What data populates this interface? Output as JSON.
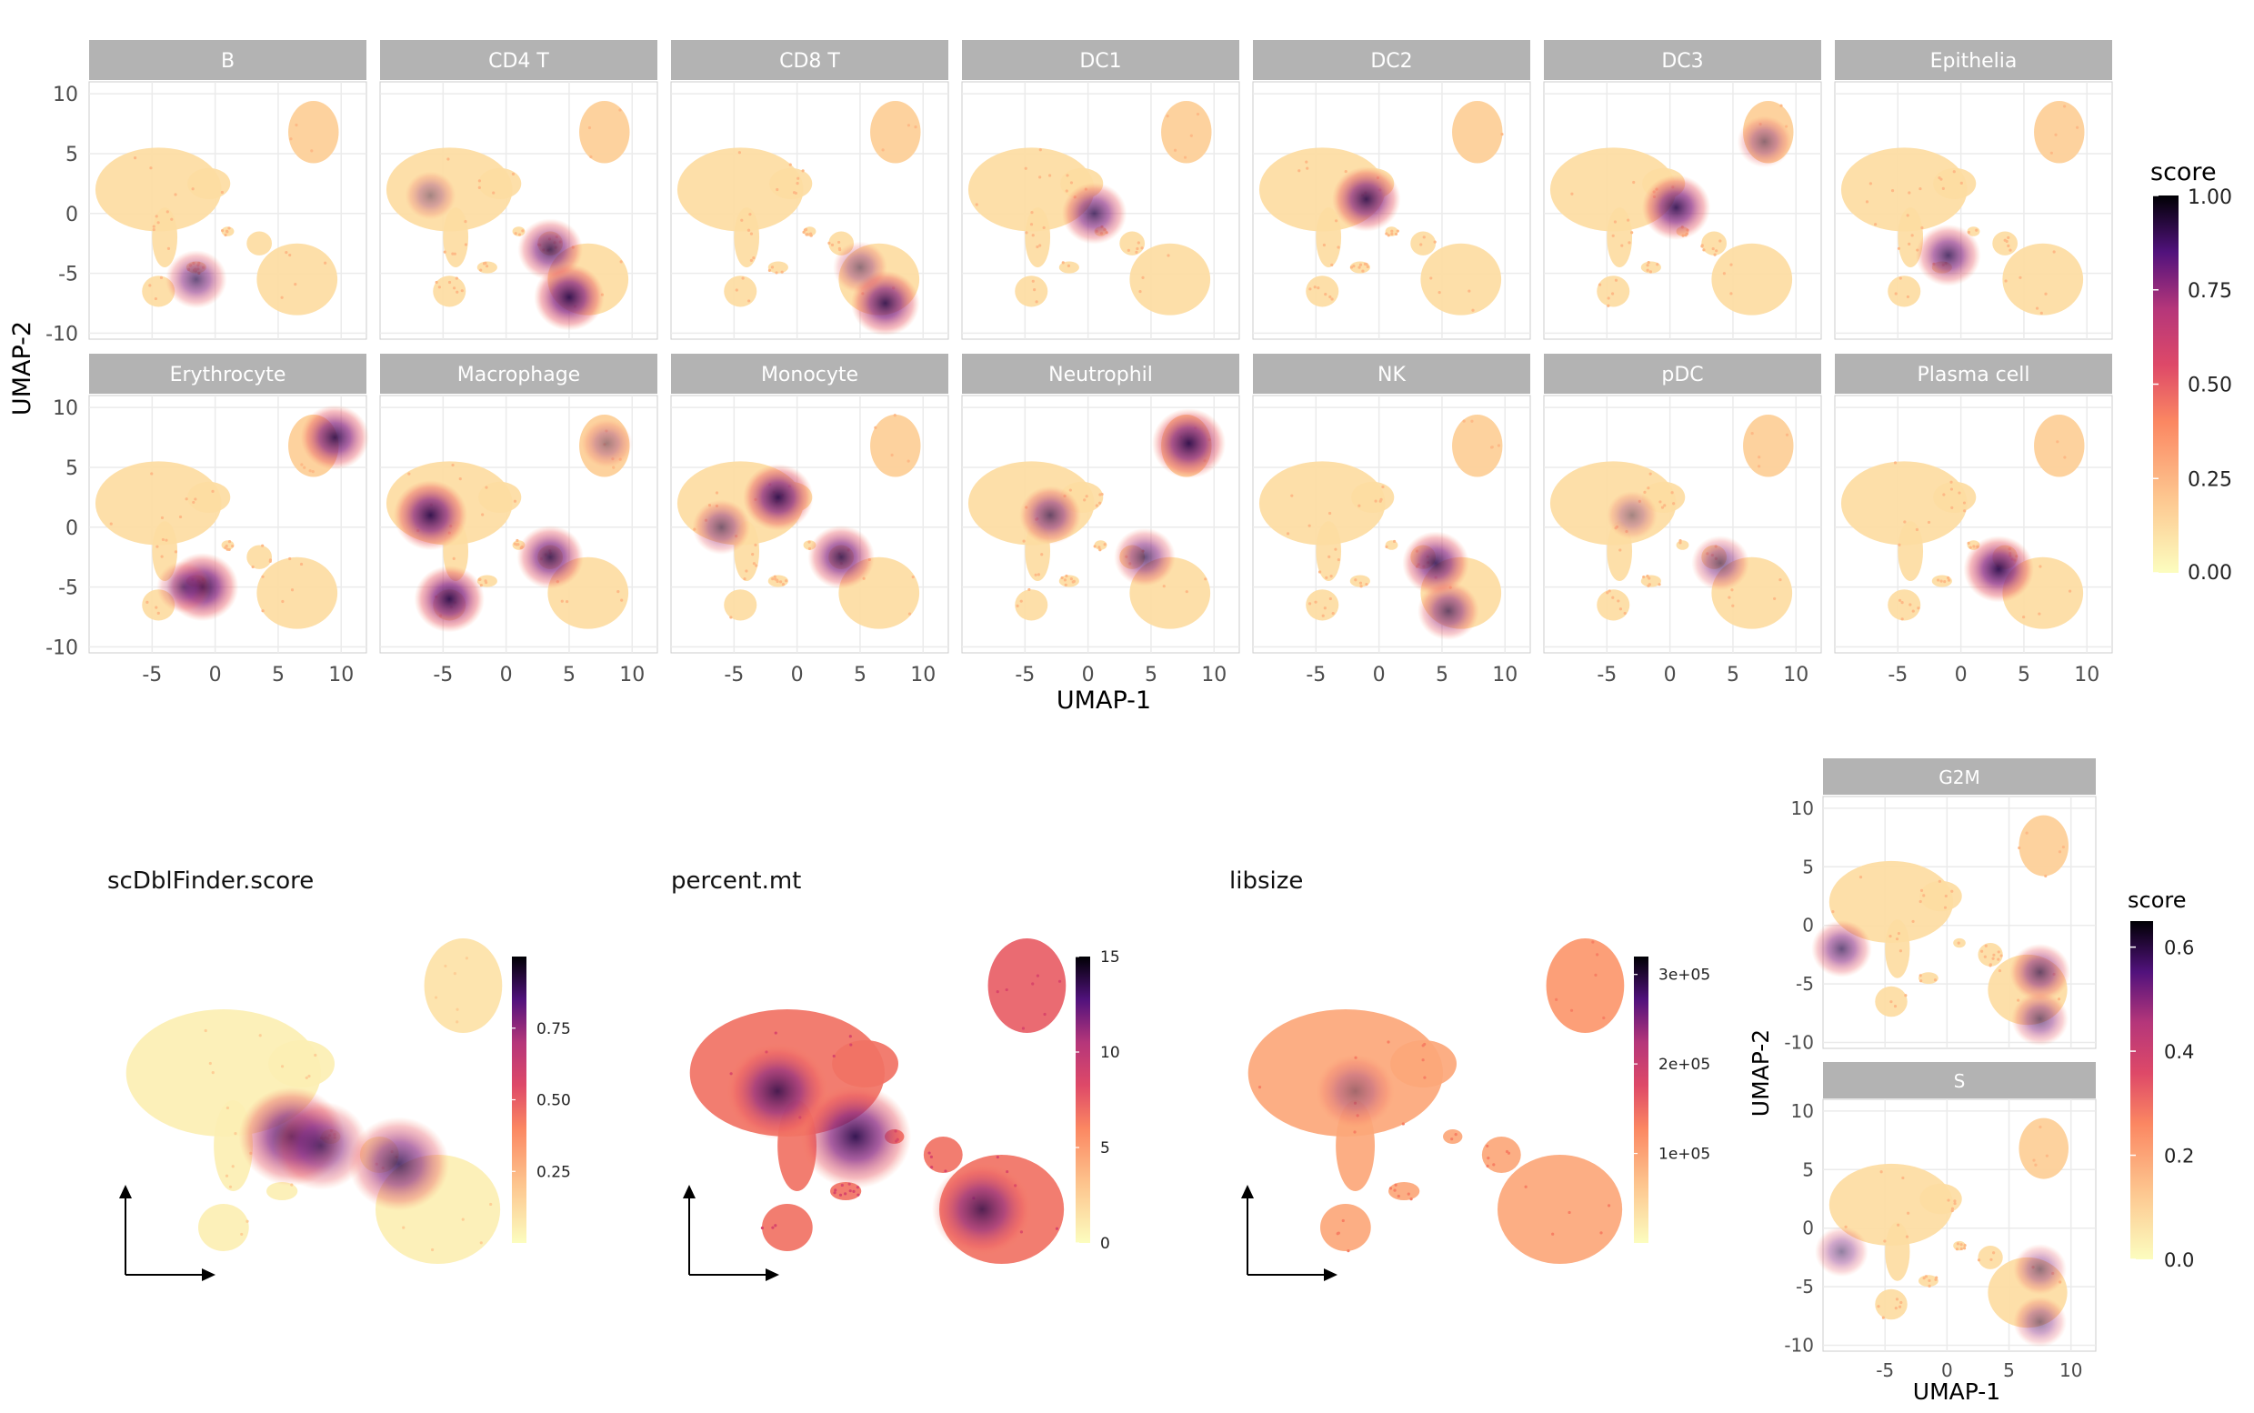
{
  "figure": {
    "top_grid": {
      "facets": [
        "B",
        "CD4 T",
        "CD8 T",
        "DC1",
        "DC2",
        "DC3",
        "Epithelia",
        "Erythrocyte",
        "Macrophage",
        "Monocyte",
        "Neutrophil",
        "NK",
        "pDC",
        "Plasma cell"
      ],
      "xlabel": "UMAP-1",
      "ylabel": "UMAP-2",
      "x_ticks": [
        -5,
        0,
        5,
        10
      ],
      "y_ticks": [
        10,
        5,
        0,
        -5,
        -10
      ],
      "xlim": [
        -10,
        12
      ],
      "ylim": [
        -10.5,
        11
      ],
      "legend": {
        "title": "score",
        "ticks": [
          1.0,
          0.75,
          0.5,
          0.25,
          0.0
        ],
        "tick_labels": [
          "1.00",
          "0.75",
          "0.50",
          "0.25",
          "0.00"
        ],
        "range": [
          0,
          1
        ]
      }
    },
    "bottom_panels": [
      {
        "title": "scDblFinder.score",
        "legend_ticks": [
          "0.75",
          "0.50",
          "0.25"
        ],
        "legend_values": [
          0.75,
          0.5,
          0.25
        ],
        "legend_range": [
          0,
          1
        ]
      },
      {
        "title": "percent.mt",
        "legend_ticks": [
          "15",
          "10",
          "5",
          "0"
        ],
        "legend_values": [
          15,
          10,
          5,
          0
        ],
        "legend_range": [
          0,
          15
        ]
      },
      {
        "title": "libsize",
        "legend_ticks": [
          "3e+05",
          "2e+05",
          "1e+05"
        ],
        "legend_values": [
          300000,
          200000,
          100000
        ],
        "legend_range": [
          0,
          320000
        ]
      }
    ],
    "cell_cycle": {
      "facets": [
        "G2M",
        "S"
      ],
      "xlabel": "UMAP-1",
      "ylabel": "UMAP-2",
      "x_ticks": [
        -5,
        0,
        5,
        10
      ],
      "y_ticks": [
        10,
        5,
        0,
        -5,
        -10
      ],
      "legend": {
        "title": "score",
        "ticks": [
          0.6,
          0.4,
          0.2,
          0.0
        ],
        "tick_labels": [
          "0.6",
          "0.4",
          "0.2",
          "0.0"
        ],
        "range": [
          0,
          0.65
        ]
      }
    },
    "colors": {
      "low": "#fcfdbf",
      "mid": "#fc8961",
      "high": "#000004",
      "strip": "#b3b3b3",
      "grid": "#ebebeb"
    }
  },
  "chart_data": [
    {
      "type": "scatter",
      "kind": "umap-facet-grid",
      "xlabel": "UMAP-1",
      "ylabel": "UMAP-2",
      "xlim": [
        -10,
        12
      ],
      "ylim": [
        -10.5,
        11
      ],
      "legend_title": "score",
      "series": [
        {
          "name": "B",
          "hot_regions": [
            [
              -1.5,
              -5.5,
              0.6
            ]
          ]
        },
        {
          "name": "CD4 T",
          "hot_regions": [
            [
              5.0,
              -7.0,
              0.85
            ],
            [
              3.5,
              -3.0,
              0.7
            ],
            [
              -6.0,
              1.5,
              0.3
            ]
          ]
        },
        {
          "name": "CD8 T",
          "hot_regions": [
            [
              7.0,
              -7.5,
              0.8
            ],
            [
              5.0,
              -4.5,
              0.4
            ]
          ]
        },
        {
          "name": "DC1",
          "hot_regions": [
            [
              0.5,
              0.0,
              0.7
            ]
          ]
        },
        {
          "name": "DC2",
          "hot_regions": [
            [
              -1.0,
              1.2,
              0.8
            ]
          ]
        },
        {
          "name": "DC3",
          "hot_regions": [
            [
              7.5,
              6.0,
              0.4
            ],
            [
              0.5,
              0.5,
              0.8
            ]
          ]
        },
        {
          "name": "Epithelia",
          "hot_regions": [
            [
              -1.0,
              -3.5,
              0.7
            ]
          ]
        },
        {
          "name": "Erythrocyte",
          "hot_regions": [
            [
              -1.0,
              -5.0,
              0.9
            ],
            [
              9.5,
              7.5,
              0.8
            ],
            [
              -2.5,
              -5.0,
              0.4
            ]
          ]
        },
        {
          "name": "Macrophage",
          "hot_regions": [
            [
              -6.0,
              1.0,
              0.95
            ],
            [
              -4.5,
              -6.0,
              0.85
            ],
            [
              3.5,
              -2.5,
              0.75
            ],
            [
              8.0,
              7.0,
              0.3
            ]
          ]
        },
        {
          "name": "Monocyte",
          "hot_regions": [
            [
              -1.5,
              2.5,
              0.85
            ],
            [
              3.5,
              -2.5,
              0.75
            ],
            [
              -6.0,
              0.0,
              0.5
            ]
          ]
        },
        {
          "name": "Neutrophil",
          "hot_regions": [
            [
              8.0,
              7.0,
              0.95
            ],
            [
              -3.0,
              1.0,
              0.6
            ],
            [
              4.5,
              -2.5,
              0.6
            ]
          ]
        },
        {
          "name": "NK",
          "hot_regions": [
            [
              5.5,
              -7.0,
              0.6
            ],
            [
              4.5,
              -3.0,
              0.75
            ]
          ]
        },
        {
          "name": "pDC",
          "hot_regions": [
            [
              -3.0,
              1.0,
              0.3
            ],
            [
              4.0,
              -3.0,
              0.5
            ]
          ]
        },
        {
          "name": "Plasma cell",
          "hot_regions": [
            [
              3.0,
              -3.5,
              0.85
            ]
          ]
        }
      ]
    },
    {
      "type": "scatter",
      "kind": "umap",
      "title": "scDblFinder.score",
      "hot_regions": [
        [
          -1.0,
          -1.5,
          0.8
        ],
        [
          4.5,
          -3.0,
          0.7
        ],
        [
          0.5,
          -2.0,
          0.6
        ]
      ]
    },
    {
      "type": "scatter",
      "kind": "umap",
      "title": "percent.mt",
      "hot_regions": [
        [
          -5.0,
          1.0,
          0.75
        ],
        [
          -1.0,
          -1.5,
          0.9
        ],
        [
          5.5,
          -5.5,
          0.7
        ]
      ]
    },
    {
      "type": "scatter",
      "kind": "umap",
      "title": "libsize",
      "hot_regions": [
        [
          -4.0,
          1.0,
          0.3
        ]
      ]
    },
    {
      "type": "scatter",
      "kind": "umap-facet-grid",
      "xlabel": "UMAP-1",
      "ylabel": "UMAP-2",
      "legend_title": "score",
      "series": [
        {
          "name": "G2M",
          "hot_regions": [
            [
              -8.5,
              -2.0,
              0.6
            ],
            [
              7.5,
              -4.0,
              0.6
            ],
            [
              7.5,
              -8.0,
              0.5
            ]
          ]
        },
        {
          "name": "S",
          "hot_regions": [
            [
              -8.5,
              -2.0,
              0.4
            ],
            [
              7.5,
              -3.5,
              0.4
            ],
            [
              7.5,
              -8.0,
              0.4
            ]
          ]
        }
      ]
    }
  ]
}
